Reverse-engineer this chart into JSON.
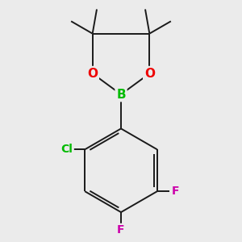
{
  "background_color": "#ebebeb",
  "bond_color": "#1a1a1a",
  "bond_width": 1.4,
  "figsize": [
    3.0,
    3.0
  ],
  "dpi": 100,
  "atom_colors": {
    "B": "#00bb00",
    "O": "#ee0000",
    "Cl": "#00bb00",
    "F": "#cc00aa",
    "C": "#1a1a1a"
  }
}
